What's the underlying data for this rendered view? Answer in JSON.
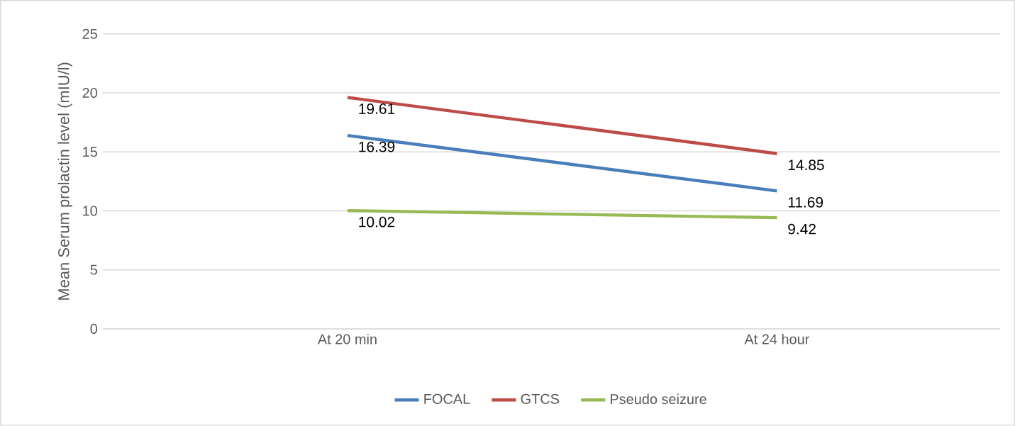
{
  "chart_data": {
    "type": "line",
    "ylabel": "Mean Serum prolactin level (mIU/l)",
    "categories": [
      "At 20 min",
      "At 24 hour"
    ],
    "series": [
      {
        "name": "FOCAL",
        "color": "#4a7ebb",
        "values": [
          16.39,
          11.69
        ]
      },
      {
        "name": "GTCS",
        "color": "#be4b48",
        "values": [
          19.61,
          14.85
        ]
      },
      {
        "name": "Pseudo seizure",
        "color": "#98b954",
        "values": [
          10.02,
          9.42
        ]
      }
    ],
    "ylim": [
      0,
      25
    ],
    "yticks": [
      0,
      5,
      10,
      15,
      20,
      25
    ],
    "grid": "y",
    "legend": "bottom",
    "data_labels": true,
    "marker": "none",
    "line_style": "solid"
  }
}
